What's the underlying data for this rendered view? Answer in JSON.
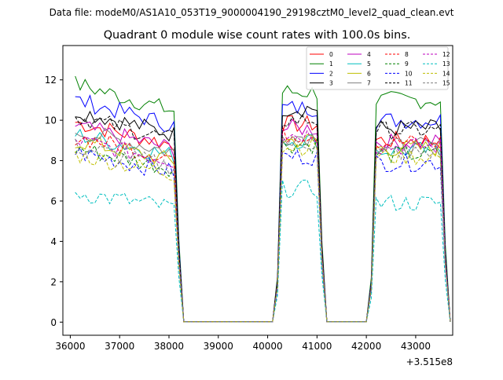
{
  "chart_data": {
    "type": "line",
    "suptitle": "Data file: modeM0/AS1A10_053T19_9000004190_29198cztM0_level2_quad_clean.evt",
    "title": "Quadrant 0 module wise count rates with 100.0s bins.",
    "xlabel": "",
    "ylabel": "",
    "x_offset_label": "+3.515e8",
    "xlim": [
      35850,
      43750
    ],
    "ylim": [
      -0.65,
      13.7
    ],
    "xticks": [
      36000,
      37000,
      38000,
      39000,
      40000,
      41000,
      42000,
      43000
    ],
    "xtick_labels": [
      "36000",
      "37000",
      "38000",
      "39000",
      "40000",
      "41000",
      "42000",
      "43000"
    ],
    "yticks": [
      0,
      2,
      4,
      6,
      8,
      10,
      12
    ],
    "ytick_labels": [
      "0",
      "2",
      "4",
      "6",
      "8",
      "10",
      "12"
    ],
    "legend_position": "top-right",
    "legend_columns": 4,
    "segments": [
      {
        "start": 36100,
        "end": 38100,
        "n": 21
      },
      {
        "start": 40300,
        "end": 41000,
        "n": 8
      },
      {
        "start": 42200,
        "end": 43500,
        "n": 14
      }
    ],
    "series": [
      {
        "name": "0",
        "color": "#ff0000",
        "dash": "solid",
        "levels": [
          9.9,
          9.8,
          9.0
        ]
      },
      {
        "name": "1",
        "color": "#008000",
        "dash": "solid",
        "levels": [
          11.8,
          11.4,
          11.0
        ]
      },
      {
        "name": "2",
        "color": "#0000ff",
        "dash": "solid",
        "levels": [
          11.0,
          10.6,
          10.0
        ]
      },
      {
        "name": "3",
        "color": "#000000",
        "dash": "solid",
        "levels": [
          10.5,
          10.6,
          9.6
        ]
      },
      {
        "name": "4",
        "color": "#bf00bf",
        "dash": "solid",
        "levels": [
          9.7,
          9.6,
          8.9
        ]
      },
      {
        "name": "5",
        "color": "#00bfbf",
        "dash": "solid",
        "levels": [
          9.3,
          9.0,
          8.5
        ]
      },
      {
        "name": "6",
        "color": "#bfbf00",
        "dash": "solid",
        "levels": [
          9.0,
          9.0,
          8.6
        ]
      },
      {
        "name": "7",
        "color": "#808080",
        "dash": "solid",
        "levels": [
          9.5,
          9.2,
          8.7
        ]
      },
      {
        "name": "8",
        "color": "#ff0000",
        "dash": "dashed",
        "levels": [
          9.2,
          9.3,
          8.9
        ]
      },
      {
        "name": "9",
        "color": "#008000",
        "dash": "dashed",
        "levels": [
          8.6,
          8.8,
          8.3
        ]
      },
      {
        "name": "10",
        "color": "#0000ff",
        "dash": "dashed",
        "levels": [
          8.4,
          8.2,
          7.9
        ]
      },
      {
        "name": "11",
        "color": "#000000",
        "dash": "dashed",
        "levels": [
          10.2,
          10.0,
          9.5
        ]
      },
      {
        "name": "12",
        "color": "#bf00bf",
        "dash": "dashed",
        "levels": [
          9.0,
          9.3,
          8.7
        ]
      },
      {
        "name": "13",
        "color": "#00bfbf",
        "dash": "dashed",
        "levels": [
          6.4,
          6.6,
          5.9
        ]
      },
      {
        "name": "14",
        "color": "#bfbf00",
        "dash": "dashed",
        "levels": [
          8.3,
          8.7,
          8.2
        ]
      },
      {
        "name": "15",
        "color": "#808080",
        "dash": "dashed",
        "levels": [
          8.7,
          8.9,
          8.4
        ]
      }
    ]
  }
}
